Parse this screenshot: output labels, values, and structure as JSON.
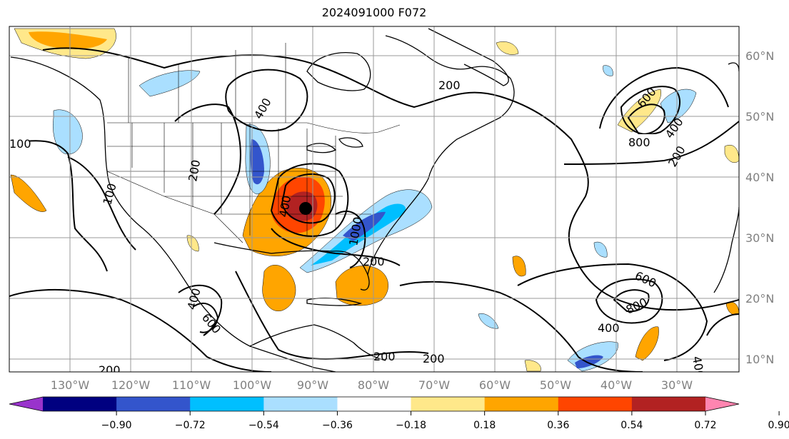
{
  "title": "2024091000 F072",
  "lon_labels": [
    "130°W",
    "120°W",
    "110°W",
    "100°W",
    "90°W",
    "80°W",
    "70°W",
    "60°W",
    "50°W",
    "40°W",
    "30°W"
  ],
  "lat_labels": [
    "60°N",
    "50°N",
    "40°N",
    "30°N",
    "20°N",
    "10°N"
  ],
  "contour_labels": [
    "200",
    "200",
    "200",
    "200",
    "200",
    "200",
    "400",
    "400",
    "400",
    "400",
    "400",
    "400",
    "600",
    "600",
    "600",
    "800",
    "800",
    "1000",
    "100",
    "200",
    "400"
  ],
  "colorbar": {
    "colors": [
      "#9933cc",
      "#000080",
      "#3355cc",
      "#00bfff",
      "#aadfff",
      "#ffffff",
      "#ffe88a",
      "#ffa500",
      "#ff4500",
      "#b22222",
      "#ff85b0"
    ],
    "ticks": [
      "−0.90",
      "−0.72",
      "−0.54",
      "−0.36",
      "−0.18",
      "0.18",
      "0.36",
      "0.54",
      "0.72",
      "0.90"
    ]
  },
  "storm_marker": "hurricane-center"
}
